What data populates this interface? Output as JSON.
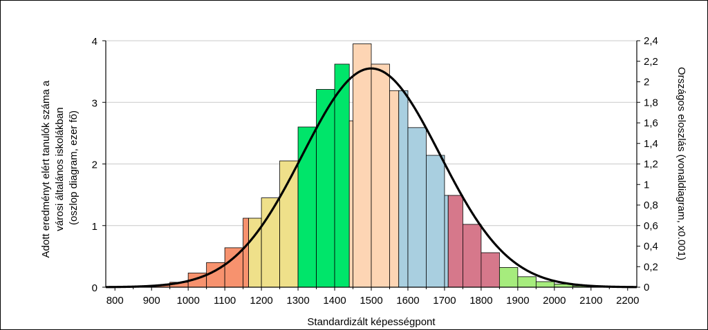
{
  "chart_data": {
    "type": "bar",
    "title": "",
    "xlabel": "Standardizált képességpont",
    "ylabel_lines": [
      "Adott eredményt elért tanulók száma a",
      "városi általános iskolákban",
      "(oszlop diagram, ezer fő)"
    ],
    "y2label": "Országos eloszlás (vonaldiagram, x0.001)",
    "xlim": [
      775,
      2225
    ],
    "ylim": [
      0,
      4
    ],
    "y2lim": [
      0,
      2.4
    ],
    "grid": true,
    "x_ticks": [
      800,
      900,
      1000,
      1100,
      1200,
      1300,
      1400,
      1500,
      1600,
      1700,
      1800,
      1900,
      2000,
      2100,
      2200
    ],
    "x_tick_labels": [
      "800",
      "900",
      "1000",
      "1100",
      "1200",
      "1300",
      "1400",
      "1500",
      "1600",
      "1700",
      "1800",
      "1900",
      "2000",
      "2100",
      "2200"
    ],
    "y_ticks": [
      0,
      1,
      2,
      3,
      4
    ],
    "y_tick_labels": [
      "0",
      "1",
      "2",
      "3",
      "4"
    ],
    "y2_ticks": [
      0,
      0.2,
      0.4,
      0.6,
      0.8,
      1,
      1.2,
      1.4,
      1.6,
      1.8,
      2,
      2.2,
      2.4
    ],
    "y2_tick_labels": [
      "0",
      "0,2",
      "0,4",
      "0,6",
      "0,8",
      "1",
      "1,2",
      "1,4",
      "1,6",
      "1,8",
      "2",
      "2,2",
      "2,4"
    ],
    "bars": [
      {
        "x0": 800,
        "x1": 850,
        "value": 0.01
      },
      {
        "x0": 850,
        "x1": 900,
        "value": 0.01
      },
      {
        "x0": 900,
        "x1": 950,
        "value": 0.03
      },
      {
        "x0": 950,
        "x1": 1000,
        "value": 0.08
      },
      {
        "x0": 1000,
        "x1": 1050,
        "value": 0.23
      },
      {
        "x0": 1050,
        "x1": 1100,
        "value": 0.4
      },
      {
        "x0": 1100,
        "x1": 1150,
        "value": 0.64
      },
      {
        "x0": 1150,
        "x1": 1165,
        "value": 1.12
      },
      {
        "x0": 1165,
        "x1": 1200,
        "value": 1.12
      },
      {
        "x0": 1200,
        "x1": 1250,
        "value": 1.45
      },
      {
        "x0": 1250,
        "x1": 1300,
        "value": 2.05
      },
      {
        "x0": 1300,
        "x1": 1350,
        "value": 2.6
      },
      {
        "x0": 1350,
        "x1": 1400,
        "value": 3.21
      },
      {
        "x0": 1400,
        "x1": 1440,
        "value": 3.62
      },
      {
        "x0": 1440,
        "x1": 1450,
        "value": 2.7
      },
      {
        "x0": 1450,
        "x1": 1500,
        "value": 3.95
      },
      {
        "x0": 1500,
        "x1": 1550,
        "value": 3.62
      },
      {
        "x0": 1550,
        "x1": 1575,
        "value": 3.19
      },
      {
        "x0": 1575,
        "x1": 1600,
        "value": 3.19
      },
      {
        "x0": 1600,
        "x1": 1650,
        "value": 2.59
      },
      {
        "x0": 1650,
        "x1": 1700,
        "value": 2.14
      },
      {
        "x0": 1700,
        "x1": 1710,
        "value": 1.49
      },
      {
        "x0": 1710,
        "x1": 1750,
        "value": 1.49
      },
      {
        "x0": 1750,
        "x1": 1800,
        "value": 1.02
      },
      {
        "x0": 1800,
        "x1": 1850,
        "value": 0.56
      },
      {
        "x0": 1850,
        "x1": 1900,
        "value": 0.32
      },
      {
        "x0": 1900,
        "x1": 1950,
        "value": 0.17
      },
      {
        "x0": 1950,
        "x1": 2000,
        "value": 0.09
      },
      {
        "x0": 2000,
        "x1": 2050,
        "value": 0.05
      },
      {
        "x0": 2050,
        "x1": 2100,
        "value": 0.02
      },
      {
        "x0": 2100,
        "x1": 2150,
        "value": 0.01
      },
      {
        "x0": 2150,
        "x1": 2200,
        "value": 0.0
      },
      {
        "x0": 2200,
        "x1": 2250,
        "value": 0.0
      }
    ],
    "color_bands": [
      {
        "x0": 775,
        "x1": 1165,
        "color": "#f7926e"
      },
      {
        "x0": 1165,
        "x1": 1300,
        "color": "#efe08a"
      },
      {
        "x0": 1300,
        "x1": 1440,
        "color": "#00e56a"
      },
      {
        "x0": 1440,
        "x1": 1575,
        "color": "#fdd5b4"
      },
      {
        "x0": 1575,
        "x1": 1710,
        "color": "#a9cfe0"
      },
      {
        "x0": 1710,
        "x1": 1850,
        "color": "#d6788b"
      },
      {
        "x0": 1850,
        "x1": 2250,
        "color": "#a6ec7d"
      }
    ],
    "curve": {
      "type": "normal",
      "mean": 1500,
      "sd": 187.5,
      "peak": 2.13,
      "axis": "y2",
      "color": "#000000"
    },
    "colors": {
      "axis": "#000000",
      "grid": "#c8c8c8",
      "bar_stroke": "#000000"
    }
  }
}
